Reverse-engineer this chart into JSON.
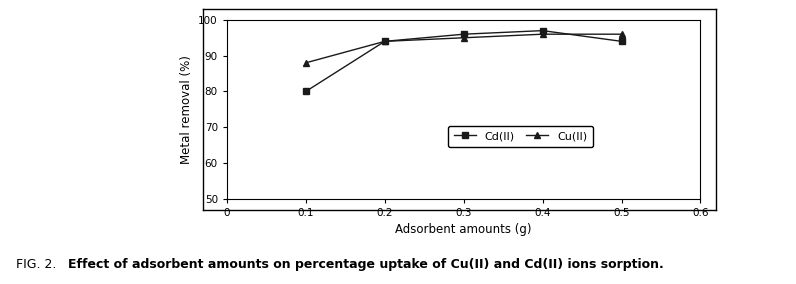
{
  "x": [
    0.1,
    0.2,
    0.3,
    0.4,
    0.5
  ],
  "cd_y": [
    80,
    94,
    96,
    97,
    94
  ],
  "cu_y": [
    88,
    94,
    95,
    96,
    96
  ],
  "xlabel": "Adsorbent amounts (g)",
  "ylabel": "Metal removal (%)",
  "xlim": [
    0,
    0.6
  ],
  "ylim": [
    50,
    100
  ],
  "yticks": [
    50,
    60,
    70,
    80,
    90,
    100
  ],
  "xticks": [
    0,
    0.1,
    0.2,
    0.3,
    0.4,
    0.5,
    0.6
  ],
  "legend_labels": [
    "Cd(II)",
    "Cu(II)"
  ],
  "line_color": "#1a1a1a",
  "caption_prefix": "FIG. 2. ",
  "caption_bold": "Effect of adsorbent amounts on percentage uptake of Cu(II) and Cd(II) ions sorption.",
  "fig_width": 7.96,
  "fig_height": 2.84,
  "dpi": 100
}
